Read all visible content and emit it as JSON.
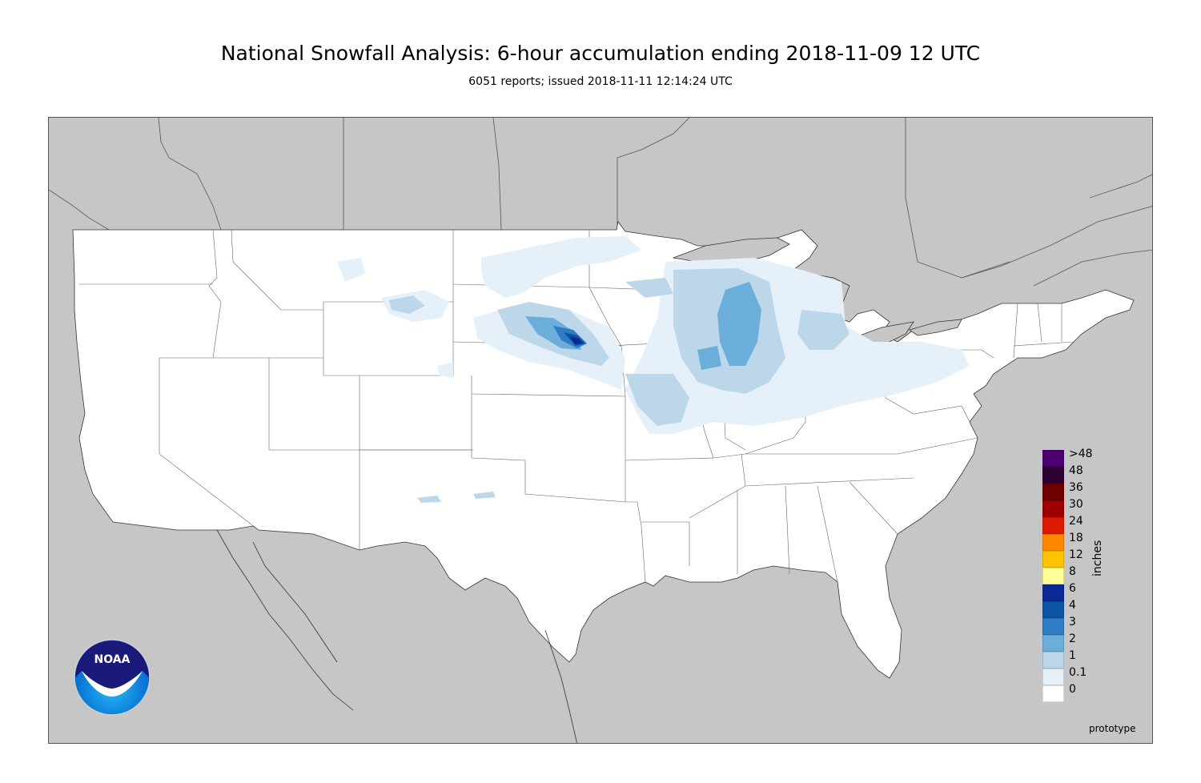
{
  "title": "National Snowfall Analysis: 6-hour accumulation ending 2018-11-09 12 UTC",
  "subtitle": "6051 reports; issued 2018-11-11 12:14:24 UTC",
  "footer": {
    "prototype_label": "prototype",
    "logo_text": "NOAA"
  },
  "legend": {
    "units_label": "inches",
    "levels": [
      {
        "label": ">48",
        "color": "#4a006e"
      },
      {
        "label": "48",
        "color": "#2c0033"
      },
      {
        "label": "36",
        "color": "#6d0000"
      },
      {
        "label": "30",
        "color": "#9e0000"
      },
      {
        "label": "24",
        "color": "#dd1900"
      },
      {
        "label": "18",
        "color": "#ff8700"
      },
      {
        "label": "12",
        "color": "#ffc200"
      },
      {
        "label": "8",
        "color": "#ffff96"
      },
      {
        "label": "6",
        "color": "#0c2895"
      },
      {
        "label": "4",
        "color": "#0b53a3"
      },
      {
        "label": "3",
        "color": "#2e7cc2"
      },
      {
        "label": "2",
        "color": "#6aaed9"
      },
      {
        "label": "1",
        "color": "#bdd7ea"
      },
      {
        "label": "0.1",
        "color": "#e5f0f8"
      },
      {
        "label": "0",
        "color": "#ffffff"
      }
    ]
  },
  "map": {
    "land_color": "#ffffff",
    "background_color": "#c6c6c6",
    "boundary_color": "#555555"
  }
}
